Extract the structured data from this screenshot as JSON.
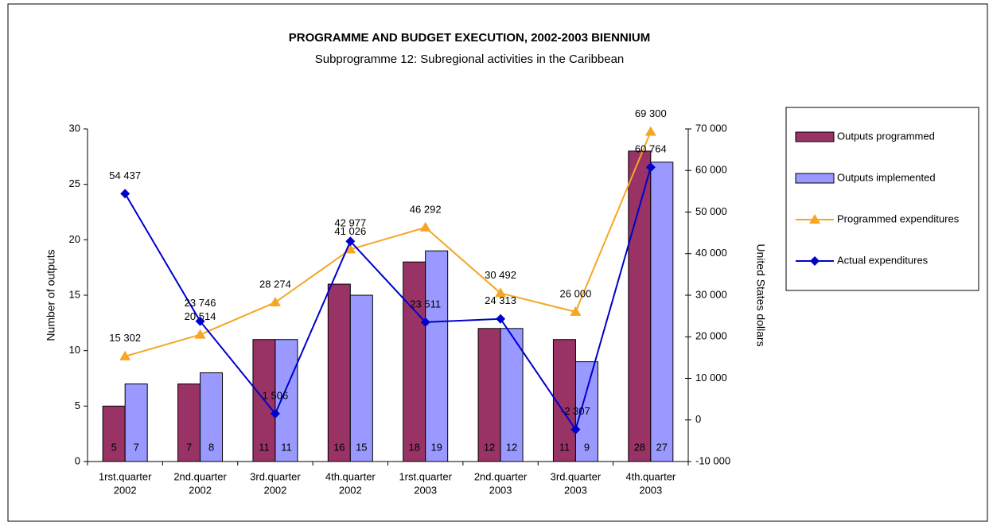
{
  "chart_data": {
    "type": "bar-line",
    "title": "PROGRAMME AND BUDGET EXECUTION, 2002-2003 BIENNIUM",
    "subtitle": "Subprogramme 12: Subregional activities in the Caribbean",
    "ylabel": "Number of outputs",
    "y2label": "United States  dollars",
    "categories": [
      [
        "1rst.quarter",
        "2002"
      ],
      [
        "2nd.quarter",
        "2002"
      ],
      [
        "3rd.quarter",
        "2002"
      ],
      [
        "4th.quarter",
        "2002"
      ],
      [
        "1rst.quarter",
        "2003"
      ],
      [
        "2nd.quarter",
        "2003"
      ],
      [
        "3rd.quarter",
        "2003"
      ],
      [
        "4th.quarter",
        "2003"
      ]
    ],
    "ylim": [
      0,
      30
    ],
    "yticks": [
      0,
      5,
      10,
      15,
      20,
      25,
      30
    ],
    "y2lim": [
      -10000,
      70000
    ],
    "y2ticks": [
      {
        "value": -10000,
        "label": "-10 000"
      },
      0,
      {
        "value": 10000,
        "label": "10 000"
      },
      {
        "value": 20000,
        "label": "20 000"
      },
      {
        "value": 30000,
        "label": "30 000"
      },
      {
        "value": 40000,
        "label": "40 000"
      },
      {
        "value": 50000,
        "label": "50 000"
      },
      {
        "value": 60000,
        "label": "60 000"
      },
      {
        "value": 70000,
        "label": "70 000"
      }
    ],
    "series": [
      {
        "name": "Outputs programmed",
        "kind": "bar",
        "color": "#993366",
        "values": [
          5,
          7,
          11,
          16,
          18,
          12,
          11,
          28
        ]
      },
      {
        "name": "Outputs implemented",
        "kind": "bar",
        "color": "#9999ff",
        "values": [
          7,
          8,
          11,
          15,
          19,
          12,
          9,
          27
        ]
      },
      {
        "name": "Programmed expenditures",
        "kind": "line",
        "marker": "triangle",
        "axis": "y2",
        "color": "#f5a623",
        "values": [
          15302,
          20514,
          28274,
          41026,
          46292,
          30492,
          26000,
          69300
        ],
        "value_labels": [
          "15 302",
          "20 514",
          "28 274",
          "41 026",
          "46 292",
          "30 492",
          "26 000",
          "69 300"
        ]
      },
      {
        "name": "Actual expenditures",
        "kind": "line",
        "marker": "diamond",
        "axis": "y2",
        "color": "#0000cc",
        "values": [
          54437,
          23746,
          1506,
          42977,
          23511,
          24313,
          -2307,
          60764
        ],
        "value_labels": [
          "54 437",
          "23 746",
          "1 506",
          "42 977",
          "23 511",
          "24 313",
          "-2 307",
          "60 764"
        ]
      }
    ]
  }
}
